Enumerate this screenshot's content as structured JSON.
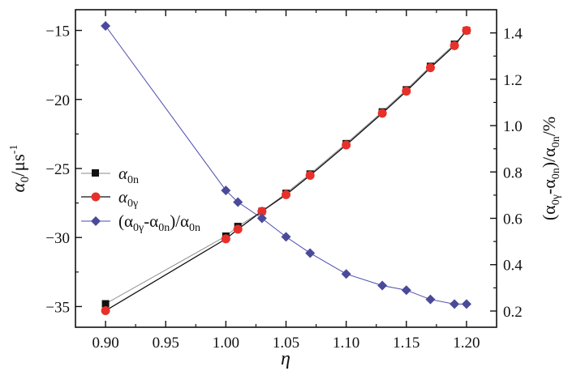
{
  "chart_data": {
    "type": "line",
    "x": [
      0.9,
      1.0,
      1.01,
      1.03,
      1.05,
      1.07,
      1.1,
      1.13,
      1.15,
      1.17,
      1.19,
      1.2
    ],
    "xlim": [
      0.875,
      1.225
    ],
    "xticks": [
      "0.90",
      "0.95",
      "1.00",
      "1.05",
      "1.10",
      "1.15",
      "1.20"
    ],
    "xlabel": "η",
    "ylabel_left": {
      "main": "α",
      "sub": "0",
      "unit": "/μs",
      "sup": "-1"
    },
    "ylim_left": [
      -36.5,
      -13.5
    ],
    "yticks_left": [
      "-35",
      "-30",
      "-25",
      "-20",
      "-15"
    ],
    "ylabel_right": {
      "p1": "(α",
      "s1": "0γ",
      "p2": "-α",
      "s2": "0n",
      "p3": ")/α",
      "s3": "0n",
      "p4": "/%"
    },
    "ylim_right": [
      0.13,
      1.5
    ],
    "yticks_right": [
      "0.2",
      "0.4",
      "0.6",
      "0.8",
      "1.0",
      "1.2",
      "1.4"
    ],
    "grid": false,
    "legend_position": "center-left",
    "series": [
      {
        "key": "a0n",
        "name_main": "α",
        "name_sub": "0n",
        "axis": "left",
        "marker": "square",
        "color": "#111111",
        "line_color": "#888888",
        "values": [
          -34.8,
          -29.9,
          -29.2,
          -28.1,
          -26.8,
          -25.4,
          -23.2,
          -20.9,
          -19.3,
          -17.6,
          -16.0,
          -15.0
        ]
      },
      {
        "key": "a0g",
        "name_main": "α",
        "name_sub": "0γ",
        "axis": "left",
        "marker": "circle",
        "color": "#e8302a",
        "line_color": "#111111",
        "values": [
          -35.3,
          -30.1,
          -29.4,
          -28.1,
          -26.9,
          -25.5,
          -23.3,
          -21.0,
          -19.4,
          -17.7,
          -16.1,
          -15.0
        ]
      },
      {
        "key": "ratio",
        "name_main": "(α",
        "name_sub": "0γ",
        "name_mid": "-α",
        "name_sub2": "0n",
        "name_tail": ")/α",
        "name_sub3": "0n",
        "axis": "right",
        "marker": "diamond",
        "color": "#4a4a9a",
        "line_color": "#4a4ab0",
        "values": [
          1.43,
          0.72,
          0.67,
          0.6,
          0.52,
          0.45,
          0.36,
          0.31,
          0.29,
          0.25,
          0.23,
          0.23
        ]
      }
    ]
  }
}
